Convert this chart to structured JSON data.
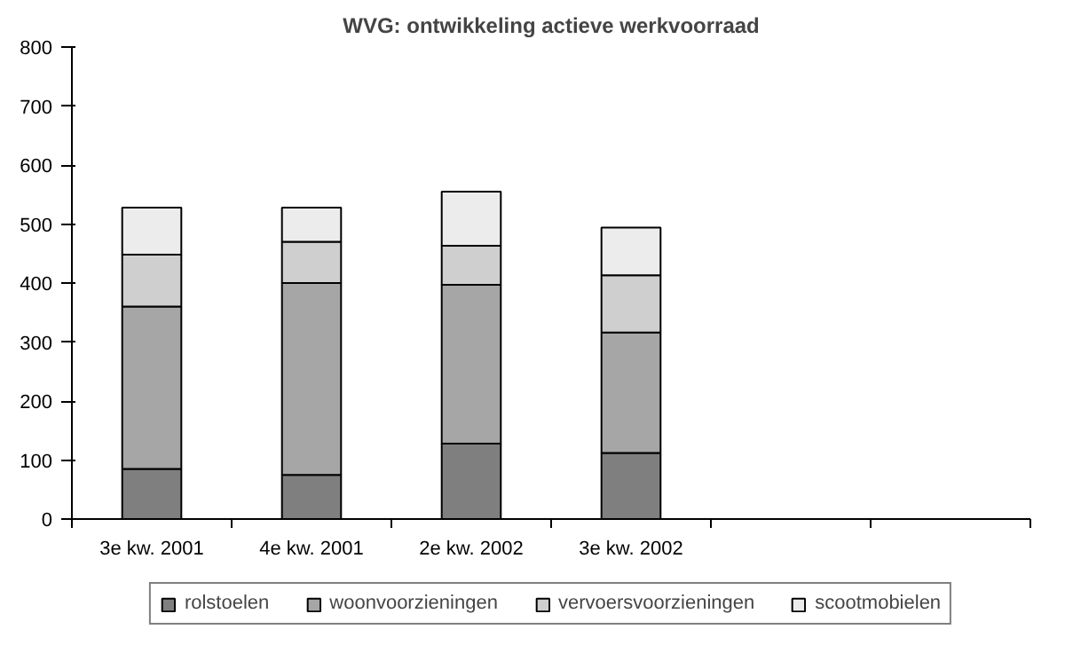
{
  "chart_data": {
    "type": "bar",
    "title": "WVG: ontwikkeling actieve werkvoorraad",
    "stacked": true,
    "categories": [
      "3e kw. 2001",
      "4e kw. 2001",
      "2e kw. 2002",
      "3e kw. 2002",
      null,
      null
    ],
    "series": [
      {
        "name": "rolstoelen",
        "color": "#7f7f7f",
        "values": [
          85,
          75,
          128,
          112,
          null,
          null
        ]
      },
      {
        "name": "woonvoorzieningen",
        "color": "#a6a6a6",
        "values": [
          275,
          325,
          269,
          204,
          null,
          null
        ]
      },
      {
        "name": "vervoersvoorzieningen",
        "color": "#cfcfcf",
        "values": [
          88,
          70,
          66,
          97,
          null,
          null
        ]
      },
      {
        "name": "scootmobielen",
        "color": "#ececec",
        "values": [
          80,
          58,
          92,
          81,
          null,
          null
        ]
      }
    ],
    "ylim": [
      0,
      800
    ],
    "yticks": [
      0,
      100,
      200,
      300,
      400,
      500,
      600,
      700,
      800
    ],
    "grid": false,
    "legend": "bottom"
  }
}
